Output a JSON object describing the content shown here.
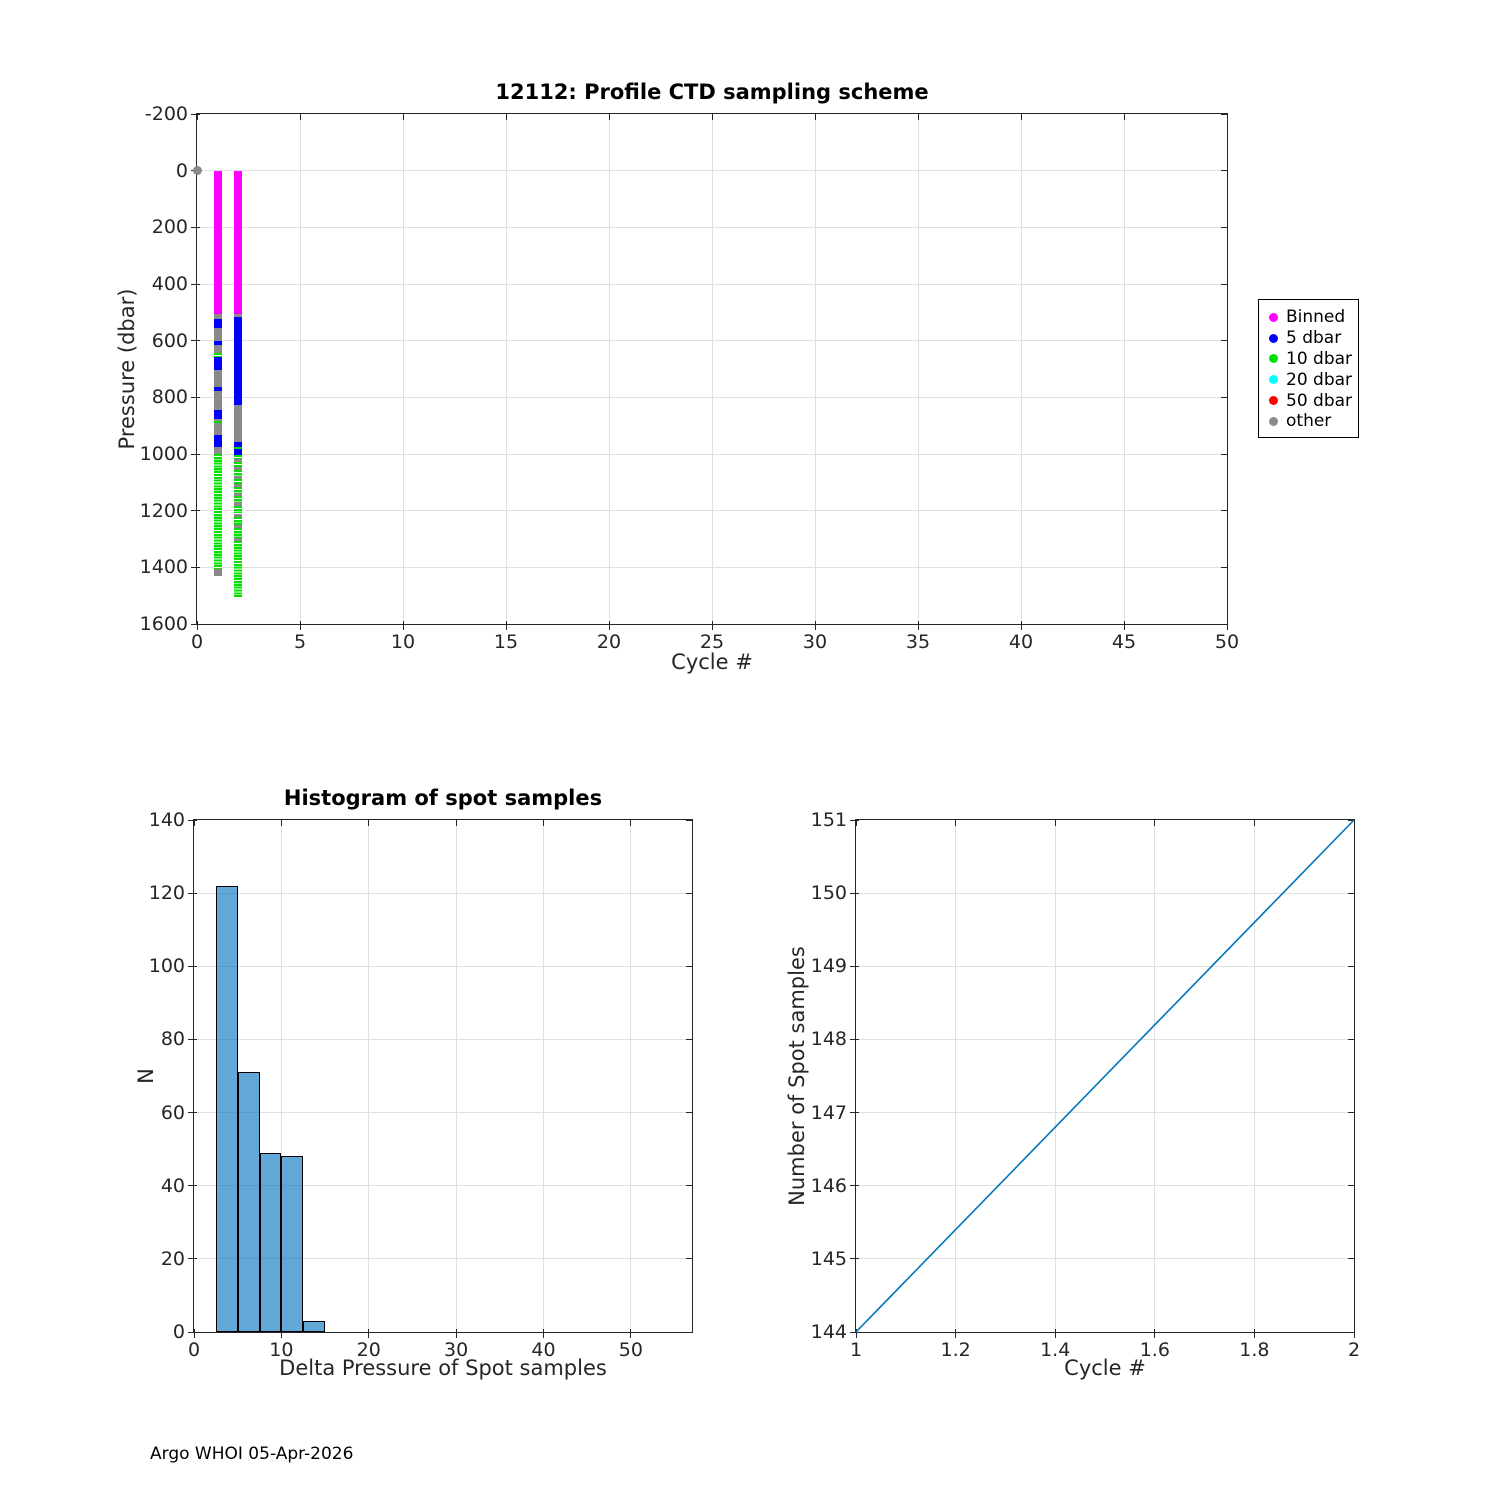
{
  "figure": {
    "footer": "Argo WHOI 05-Apr-2026"
  },
  "colors": {
    "background": "#FFFFFF",
    "axis": "#262626",
    "grid": "#E0E0E0",
    "line_blue": "#0072BD",
    "hist_bar_fill": "rgba(0,114,189,0.62)",
    "hist_bar_edge": "#000000",
    "category_colors": {
      "Binned": "#FF00FF",
      "5 dbar": "#0000FF",
      "10 dbar": "#00E100",
      "20 dbar": "#00FFFF",
      "50 dbar": "#FF0000",
      "other": "#8A8A8A"
    }
  },
  "chart_data": [
    {
      "id": "ctd-sampling",
      "type": "scatter",
      "title": "12112: Profile CTD sampling scheme",
      "xlabel": "Cycle #",
      "ylabel": "Pressure (dbar)",
      "xlim": [
        0,
        50
      ],
      "ylim": [
        -200,
        1600
      ],
      "y_axis_direction": "reversed-depth-down",
      "grid": true,
      "xticks": [
        0,
        5,
        10,
        15,
        20,
        25,
        30,
        35,
        40,
        45,
        50
      ],
      "yticks": [
        -200,
        0,
        200,
        400,
        600,
        800,
        1000,
        1200,
        1400,
        1600
      ],
      "legend": {
        "position": "outside-right",
        "entries": [
          {
            "label": "Binned",
            "color": "#FF00FF"
          },
          {
            "label": "5 dbar",
            "color": "#0000FF"
          },
          {
            "label": "10 dbar",
            "color": "#00E100"
          },
          {
            "label": "20 dbar",
            "color": "#00FFFF"
          },
          {
            "label": "50 dbar",
            "color": "#FF0000"
          },
          {
            "label": "other",
            "color": "#8A8A8A"
          }
        ]
      },
      "surface_point": {
        "cycle": 0,
        "pressure": 0,
        "category": "other"
      },
      "profiles": [
        {
          "cycle": 1,
          "segments": [
            [
              0,
              505,
              "Binned"
            ],
            [
              505,
              525,
              "other"
            ],
            [
              525,
              555,
              "5 dbar"
            ],
            [
              555,
              600,
              "other"
            ],
            [
              600,
              615,
              "5 dbar"
            ],
            [
              615,
              645,
              "other"
            ],
            [
              645,
              658,
              "10 dbar"
            ],
            [
              658,
              705,
              "5 dbar"
            ],
            [
              705,
              762,
              "other"
            ],
            [
              762,
              776,
              "5 dbar"
            ],
            [
              776,
              845,
              "other"
            ],
            [
              845,
              876,
              "5 dbar"
            ],
            [
              876,
              882,
              "other"
            ],
            [
              882,
              890,
              "10 dbar"
            ],
            [
              890,
              932,
              "other"
            ],
            [
              932,
              975,
              "5 dbar"
            ],
            [
              975,
              1000,
              "other"
            ],
            [
              1000,
              1405,
              "10 dbar"
            ],
            [
              1405,
              1432,
              "other"
            ]
          ]
        },
        {
          "cycle": 2,
          "segments": [
            [
              0,
              505,
              "Binned"
            ],
            [
              505,
              516,
              "other"
            ],
            [
              516,
              826,
              "5 dbar"
            ],
            [
              826,
              958,
              "other"
            ],
            [
              958,
              976,
              "5 dbar"
            ],
            [
              976,
              984,
              "10 dbar"
            ],
            [
              984,
              1002,
              "5 dbar"
            ],
            [
              1002,
              1016,
              "10 dbar"
            ],
            [
              1016,
              1028,
              "other"
            ],
            [
              1028,
              1046,
              "10 dbar"
            ],
            [
              1046,
              1058,
              "other"
            ],
            [
              1058,
              1076,
              "10 dbar"
            ],
            [
              1076,
              1088,
              "other"
            ],
            [
              1088,
              1106,
              "10 dbar"
            ],
            [
              1106,
              1118,
              "other"
            ],
            [
              1118,
              1136,
              "10 dbar"
            ],
            [
              1136,
              1148,
              "other"
            ],
            [
              1148,
              1170,
              "10 dbar"
            ],
            [
              1170,
              1182,
              "other"
            ],
            [
              1182,
              1210,
              "10 dbar"
            ],
            [
              1210,
              1222,
              "other"
            ],
            [
              1222,
              1252,
              "10 dbar"
            ],
            [
              1252,
              1262,
              "other"
            ],
            [
              1262,
              1296,
              "10 dbar"
            ],
            [
              1296,
              1306,
              "other"
            ],
            [
              1306,
              1510,
              "10 dbar"
            ]
          ]
        }
      ]
    },
    {
      "id": "spot-histogram",
      "type": "bar",
      "title": "Histogram of spot samples",
      "xlabel": "Delta Pressure of Spot samples",
      "ylabel": "N",
      "xlim": [
        0,
        57
      ],
      "ylim": [
        0,
        140
      ],
      "grid": true,
      "xticks": [
        0,
        10,
        20,
        30,
        40,
        50
      ],
      "yticks": [
        0,
        20,
        40,
        60,
        80,
        100,
        120,
        140
      ],
      "bin_width": 2.5,
      "bins": [
        {
          "x0": 2.5,
          "x1": 5,
          "count": 122
        },
        {
          "x0": 5,
          "x1": 7.5,
          "count": 71
        },
        {
          "x0": 7.5,
          "x1": 10,
          "count": 49
        },
        {
          "x0": 10,
          "x1": 12.5,
          "count": 48
        },
        {
          "x0": 12.5,
          "x1": 15,
          "count": 3
        }
      ]
    },
    {
      "id": "spot-samples-per-cycle",
      "type": "line",
      "title": "",
      "xlabel": "Cycle #",
      "ylabel": "Number of Spot samples",
      "xlim": [
        1,
        2
      ],
      "ylim": [
        144,
        151
      ],
      "grid": true,
      "xticks": [
        1,
        1.2,
        1.4,
        1.6,
        1.8,
        2
      ],
      "yticks": [
        144,
        145,
        146,
        147,
        148,
        149,
        150,
        151
      ],
      "points": [
        {
          "x": 1,
          "y": 144
        },
        {
          "x": 2,
          "y": 151
        }
      ]
    }
  ]
}
